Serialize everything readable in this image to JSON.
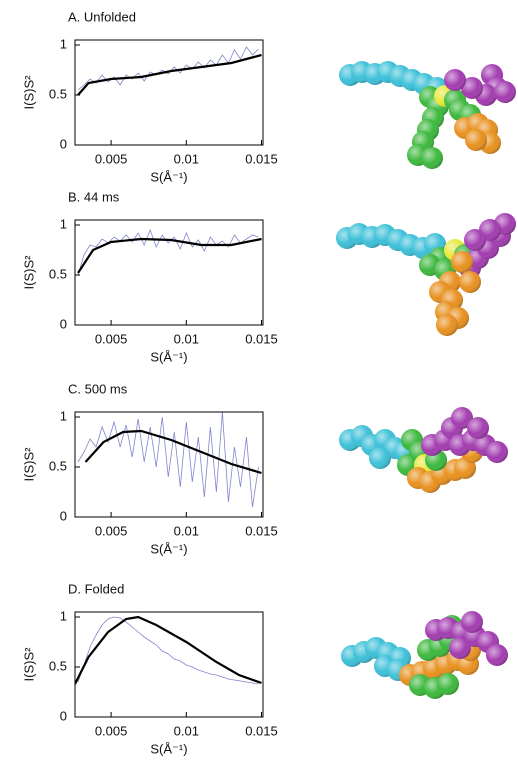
{
  "chart_data": [
    {
      "type": "line",
      "title": "A.  Unfolded",
      "ylabel": "I(S)S²",
      "xlabel": "S(Å⁻¹)",
      "xlim": [
        0.0026,
        0.0151
      ],
      "ylim": [
        0,
        1.05
      ],
      "xticks": [
        0.005,
        0.01,
        0.015
      ],
      "yticks": [
        0,
        0.5,
        1
      ],
      "series": [
        {
          "color": "#7f86c8",
          "x": [
            0.0028,
            0.0032,
            0.0036,
            0.004,
            0.0044,
            0.0048,
            0.0052,
            0.0056,
            0.006,
            0.0064,
            0.0068,
            0.0072,
            0.0076,
            0.008,
            0.0084,
            0.0088,
            0.0092,
            0.0096,
            0.01,
            0.0104,
            0.0108,
            0.0112,
            0.0116,
            0.012,
            0.0124,
            0.0128,
            0.0132,
            0.0136,
            0.014,
            0.0144,
            0.0148
          ],
          "values": [
            0.55,
            0.6,
            0.66,
            0.62,
            0.7,
            0.63,
            0.68,
            0.6,
            0.7,
            0.66,
            0.72,
            0.64,
            0.73,
            0.7,
            0.75,
            0.71,
            0.78,
            0.72,
            0.8,
            0.76,
            0.83,
            0.77,
            0.85,
            0.8,
            0.9,
            0.82,
            0.95,
            0.86,
            0.98,
            0.9,
            0.96
          ]
        },
        {
          "color": "#000000",
          "x": [
            0.0028,
            0.0035,
            0.005,
            0.007,
            0.009,
            0.011,
            0.013,
            0.0145,
            0.015
          ],
          "values": [
            0.5,
            0.62,
            0.66,
            0.68,
            0.74,
            0.78,
            0.82,
            0.88,
            0.9
          ]
        }
      ]
    },
    {
      "type": "line",
      "title": "B.  44 ms",
      "ylabel": "I(S)S²",
      "xlabel": "S(Å⁻¹)",
      "xlim": [
        0.0026,
        0.0151
      ],
      "ylim": [
        0,
        1.05
      ],
      "xticks": [
        0.005,
        0.01,
        0.015
      ],
      "yticks": [
        0,
        0.5,
        1
      ],
      "series": [
        {
          "color": "#7f86c8",
          "x": [
            0.0028,
            0.0032,
            0.0036,
            0.004,
            0.0044,
            0.0048,
            0.0052,
            0.0056,
            0.006,
            0.0064,
            0.0068,
            0.0072,
            0.0076,
            0.008,
            0.0084,
            0.0088,
            0.0092,
            0.0096,
            0.01,
            0.0104,
            0.0108,
            0.0112,
            0.0116,
            0.012,
            0.0124,
            0.0128,
            0.0132,
            0.0136,
            0.014,
            0.0144,
            0.0148
          ],
          "values": [
            0.5,
            0.7,
            0.8,
            0.78,
            0.86,
            0.82,
            0.88,
            0.84,
            0.9,
            0.83,
            0.92,
            0.8,
            0.95,
            0.78,
            0.9,
            0.82,
            0.88,
            0.76,
            0.92,
            0.78,
            0.85,
            0.74,
            0.88,
            0.8,
            0.84,
            0.78,
            0.9,
            0.82,
            0.86,
            0.9,
            0.88
          ]
        },
        {
          "color": "#000000",
          "x": [
            0.0028,
            0.0038,
            0.005,
            0.007,
            0.009,
            0.011,
            0.013,
            0.015
          ],
          "values": [
            0.52,
            0.75,
            0.83,
            0.86,
            0.85,
            0.8,
            0.8,
            0.86
          ]
        }
      ]
    },
    {
      "type": "line",
      "title": "C.  500 ms",
      "ylabel": "I(S)S²",
      "xlabel": "S(Å⁻¹)",
      "xlim": [
        0.0026,
        0.0151
      ],
      "ylim": [
        0,
        1.05
      ],
      "xticks": [
        0.005,
        0.01,
        0.015
      ],
      "yticks": [
        0,
        0.5,
        1
      ],
      "series": [
        {
          "color": "#7f86c8",
          "x": [
            0.0028,
            0.0032,
            0.0036,
            0.004,
            0.0044,
            0.0048,
            0.0052,
            0.0056,
            0.006,
            0.0064,
            0.0068,
            0.0072,
            0.0076,
            0.008,
            0.0084,
            0.0088,
            0.0092,
            0.0096,
            0.01,
            0.0104,
            0.0108,
            0.0112,
            0.0116,
            0.012,
            0.0124,
            0.0128,
            0.0132,
            0.0136,
            0.014,
            0.0144,
            0.0148
          ],
          "values": [
            0.55,
            0.65,
            0.78,
            0.7,
            0.9,
            0.75,
            0.95,
            0.7,
            0.92,
            0.6,
            0.98,
            0.55,
            0.9,
            0.5,
            1.0,
            0.4,
            0.85,
            0.3,
            0.95,
            0.35,
            0.8,
            0.2,
            0.9,
            0.25,
            1.05,
            0.15,
            0.7,
            0.3,
            0.8,
            0.1,
            0.5
          ]
        },
        {
          "color": "#000000",
          "x": [
            0.0033,
            0.0045,
            0.0058,
            0.007,
            0.009,
            0.011,
            0.013,
            0.015
          ],
          "values": [
            0.55,
            0.75,
            0.85,
            0.86,
            0.77,
            0.65,
            0.53,
            0.44
          ]
        }
      ]
    },
    {
      "type": "line",
      "title": "D.  Folded",
      "ylabel": "I(S)S²",
      "xlabel": "S(Å⁻¹)",
      "xlim": [
        0.0026,
        0.0151
      ],
      "ylim": [
        0,
        1.05
      ],
      "xticks": [
        0.005,
        0.01,
        0.015
      ],
      "yticks": [
        0,
        0.5,
        1
      ],
      "series": [
        {
          "color": "#7f86c8",
          "x": [
            0.0028,
            0.0032,
            0.0036,
            0.004,
            0.0044,
            0.0048,
            0.0052,
            0.0056,
            0.006,
            0.0064,
            0.0068,
            0.0072,
            0.0076,
            0.008,
            0.0084,
            0.0088,
            0.0092,
            0.0096,
            0.01,
            0.0104,
            0.0108,
            0.0112,
            0.0116,
            0.012,
            0.0124,
            0.0128,
            0.0132,
            0.0136,
            0.014,
            0.0144,
            0.0148
          ],
          "values": [
            0.35,
            0.52,
            0.7,
            0.82,
            0.92,
            0.98,
            1.0,
            0.99,
            0.95,
            0.9,
            0.85,
            0.8,
            0.76,
            0.72,
            0.66,
            0.63,
            0.58,
            0.56,
            0.52,
            0.5,
            0.47,
            0.45,
            0.43,
            0.42,
            0.4,
            0.38,
            0.37,
            0.36,
            0.35,
            0.34,
            0.33
          ]
        },
        {
          "color": "#000000",
          "x": [
            0.0026,
            0.0035,
            0.0048,
            0.006,
            0.0068,
            0.008,
            0.01,
            0.012,
            0.0135,
            0.015
          ],
          "values": [
            0.33,
            0.6,
            0.85,
            0.98,
            1.0,
            0.92,
            0.75,
            0.55,
            0.42,
            0.34
          ]
        }
      ]
    }
  ]
}
